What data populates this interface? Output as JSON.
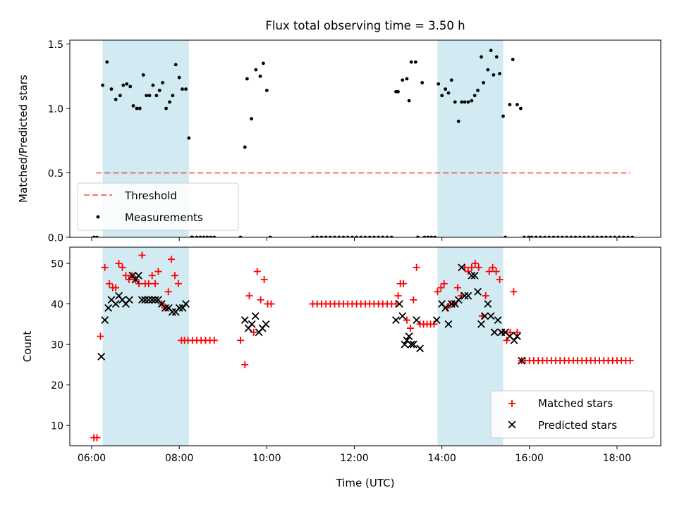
{
  "title": "Flux total observing time = 3.50 h",
  "colors": {
    "shade": "#add8e6",
    "threshold": "#ff0000",
    "measurement": "#000000",
    "matched": "#ff0000",
    "predicted": "#000000"
  },
  "chart_data": [
    {
      "type": "scatter",
      "ylabel": "Matched/Predicted stars",
      "ylim": [
        0,
        1.53
      ],
      "xlim": [
        5.5,
        19.0
      ],
      "yticks": [
        0.0,
        0.5,
        1.0,
        1.5
      ],
      "ytick_labels": [
        "0.0",
        "0.5",
        "1.0",
        "1.5"
      ],
      "shaded_ranges": [
        [
          6.25,
          8.22
        ],
        [
          13.9,
          15.4
        ]
      ],
      "threshold": {
        "name": "Threshold",
        "value": 0.5,
        "x_start": 6.1,
        "x_end": 18.3,
        "style": "dashed"
      },
      "legend": {
        "position": "lower-left",
        "entries": [
          "Threshold",
          "Measurements"
        ]
      },
      "series": [
        {
          "name": "Measurements",
          "marker": "dot",
          "x": [
            6.05,
            6.12,
            6.25,
            6.35,
            6.45,
            6.55,
            6.65,
            6.72,
            6.8,
            6.88,
            6.95,
            7.03,
            7.1,
            7.18,
            7.25,
            7.32,
            7.4,
            7.48,
            7.55,
            7.62,
            7.7,
            7.78,
            7.85,
            7.92,
            8.0,
            8.07,
            8.15,
            8.22,
            8.28,
            8.3,
            8.4,
            8.48,
            8.56,
            8.64,
            8.72,
            8.8,
            9.4,
            9.5,
            9.55,
            9.65,
            9.75,
            9.85,
            9.92,
            10.0,
            10.08,
            11.05,
            11.15,
            11.25,
            11.35,
            11.45,
            11.55,
            11.65,
            11.75,
            11.85,
            11.95,
            12.05,
            12.15,
            12.25,
            12.35,
            12.45,
            12.55,
            12.65,
            12.75,
            12.85,
            12.95,
            13.0,
            13.1,
            13.2,
            13.25,
            13.3,
            13.4,
            13.45,
            13.55,
            13.6,
            13.68,
            13.76,
            13.84,
            13.92,
            14.0,
            14.08,
            14.15,
            14.22,
            14.3,
            14.38,
            14.45,
            14.52,
            14.6,
            14.68,
            14.75,
            14.82,
            14.9,
            14.95,
            15.05,
            15.12,
            15.18,
            15.25,
            15.32,
            15.4,
            15.45,
            15.55,
            15.62,
            15.72,
            15.8,
            15.88,
            15.98,
            16.05,
            16.15,
            16.25,
            16.35,
            16.45,
            16.55,
            16.65,
            16.75,
            16.85,
            16.95,
            17.05,
            17.15,
            17.25,
            17.35,
            17.45,
            17.55,
            17.65,
            17.75,
            17.85,
            17.95,
            18.05,
            18.15,
            18.25,
            18.35
          ],
          "y": [
            0.0,
            0.0,
            1.18,
            1.36,
            1.15,
            1.07,
            1.1,
            1.18,
            1.19,
            1.17,
            1.02,
            1.0,
            1.0,
            1.26,
            1.1,
            1.1,
            1.18,
            1.1,
            1.14,
            1.2,
            1.0,
            1.05,
            1.1,
            1.34,
            1.24,
            1.15,
            1.15,
            0.77,
            0.0,
            0.0,
            0.0,
            0.0,
            0.0,
            0.0,
            0.0,
            0.0,
            0.0,
            0.7,
            1.23,
            0.92,
            1.3,
            1.25,
            1.35,
            1.14,
            0.0,
            0.0,
            0.0,
            0.0,
            0.0,
            0.0,
            0.0,
            0.0,
            0.0,
            0.0,
            0.0,
            0.0,
            0.0,
            0.0,
            0.0,
            0.0,
            0.0,
            0.0,
            0.0,
            0.0,
            1.13,
            1.13,
            1.22,
            1.23,
            1.06,
            1.36,
            1.36,
            0.0,
            1.2,
            0.0,
            0.0,
            0.0,
            0.0,
            1.19,
            1.1,
            1.15,
            1.12,
            1.22,
            1.05,
            0.9,
            1.05,
            1.05,
            1.05,
            1.06,
            1.1,
            1.14,
            1.4,
            1.2,
            1.3,
            1.45,
            1.26,
            1.4,
            1.27,
            0.94,
            0.0,
            1.03,
            1.38,
            1.03,
            1.0,
            0.0,
            0.0,
            0.0,
            0.0,
            0.0,
            0.0,
            0.0,
            0.0,
            0.0,
            0.0,
            0.0,
            0.0,
            0.0,
            0.0,
            0.0,
            0.0,
            0.0,
            0.0,
            0.0,
            0.0,
            0.0,
            0.0,
            0.0,
            0.0,
            0.0,
            0.0
          ]
        }
      ]
    },
    {
      "type": "scatter",
      "ylabel": "Count",
      "xlabel": "Time (UTC)",
      "ylim": [
        5,
        54
      ],
      "xlim": [
        5.5,
        19.0
      ],
      "yticks": [
        10,
        20,
        30,
        40,
        50
      ],
      "ytick_labels": [
        "10",
        "20",
        "30",
        "40",
        "50"
      ],
      "xticks": [
        6,
        8,
        10,
        12,
        14,
        16,
        18
      ],
      "xtick_labels": [
        "06:00",
        "08:00",
        "10:00",
        "12:00",
        "14:00",
        "16:00",
        "18:00"
      ],
      "shaded_ranges": [
        [
          6.25,
          8.22
        ],
        [
          13.9,
          15.4
        ]
      ],
      "legend": {
        "position": "lower-right",
        "entries": [
          "Matched stars",
          "Predicted stars"
        ]
      },
      "series": [
        {
          "name": "Matched stars",
          "marker": "plus",
          "x": [
            6.05,
            6.12,
            6.2,
            6.3,
            6.4,
            6.48,
            6.55,
            6.62,
            6.7,
            6.78,
            6.85,
            6.92,
            7.0,
            7.08,
            7.15,
            7.22,
            7.3,
            7.38,
            7.45,
            7.52,
            7.6,
            7.68,
            7.75,
            7.82,
            7.9,
            7.98,
            8.05,
            8.12,
            8.2,
            8.3,
            8.4,
            8.5,
            8.6,
            8.7,
            8.8,
            9.4,
            9.5,
            9.6,
            9.7,
            9.78,
            9.86,
            9.94,
            10.02,
            10.1,
            11.05,
            11.15,
            11.25,
            11.35,
            11.45,
            11.55,
            11.65,
            11.75,
            11.85,
            11.95,
            12.05,
            12.15,
            12.25,
            12.35,
            12.45,
            12.55,
            12.65,
            12.75,
            12.85,
            12.95,
            13.0,
            13.05,
            13.12,
            13.2,
            13.28,
            13.35,
            13.42,
            13.5,
            13.58,
            13.66,
            13.74,
            13.82,
            13.9,
            13.98,
            14.05,
            14.12,
            14.2,
            14.28,
            14.36,
            14.44,
            14.52,
            14.6,
            14.68,
            14.76,
            14.84,
            14.92,
            15.0,
            15.08,
            15.16,
            15.24,
            15.32,
            15.4,
            15.48,
            15.56,
            15.64,
            15.72,
            15.82,
            15.9,
            16.0,
            16.1,
            16.2,
            16.3,
            16.4,
            16.5,
            16.6,
            16.7,
            16.8,
            16.9,
            17.0,
            17.1,
            17.2,
            17.3,
            17.4,
            17.5,
            17.6,
            17.7,
            17.8,
            17.9,
            18.0,
            18.1,
            18.2,
            18.3
          ],
          "y": [
            7,
            7,
            32,
            49,
            45,
            44,
            44,
            50,
            49,
            47,
            46,
            47,
            46,
            45,
            52,
            45,
            45,
            47,
            45,
            48,
            40,
            39,
            43,
            51,
            47,
            45,
            31,
            31,
            31,
            31,
            31,
            31,
            31,
            31,
            31,
            31,
            25,
            42,
            33,
            48,
            41,
            46,
            40,
            40,
            40,
            40,
            40,
            40,
            40,
            40,
            40,
            40,
            40,
            40,
            40,
            40,
            40,
            40,
            40,
            40,
            40,
            40,
            40,
            40,
            42,
            45,
            45,
            36,
            34,
            41,
            49,
            35,
            35,
            35,
            35,
            35,
            43,
            44,
            45,
            39,
            40,
            40,
            44,
            42,
            49,
            48,
            49,
            50,
            49,
            37,
            42,
            48,
            49,
            48,
            46,
            33,
            31,
            33,
            43,
            33,
            26,
            26,
            26,
            26,
            26,
            26,
            26,
            26,
            26,
            26,
            26,
            26,
            26,
            26,
            26,
            26,
            26,
            26,
            26,
            26,
            26,
            26,
            26,
            26,
            26,
            26
          ]
        },
        {
          "name": "Predicted stars",
          "marker": "x",
          "x": [
            6.22,
            6.3,
            6.38,
            6.45,
            6.55,
            6.62,
            6.7,
            6.78,
            6.86,
            6.93,
            7.0,
            7.07,
            7.15,
            7.22,
            7.3,
            7.38,
            7.45,
            7.52,
            7.6,
            7.68,
            7.76,
            7.84,
            7.92,
            8.0,
            8.08,
            8.15,
            9.5,
            9.58,
            9.66,
            9.74,
            9.82,
            9.9,
            9.98,
            12.95,
            13.03,
            13.1,
            13.15,
            13.2,
            13.25,
            13.3,
            13.35,
            13.42,
            13.5,
            13.88,
            14.0,
            14.08,
            14.15,
            14.22,
            14.3,
            14.38,
            14.45,
            14.52,
            14.6,
            14.68,
            14.75,
            14.82,
            14.9,
            14.98,
            15.05,
            15.12,
            15.2,
            15.28,
            15.36,
            15.45,
            15.55,
            15.65,
            15.72,
            15.82
          ],
          "y": [
            27,
            36,
            39,
            41,
            40,
            42,
            41,
            40,
            41,
            47,
            46,
            47,
            41,
            41,
            41,
            41,
            41,
            41,
            40,
            39,
            39,
            38,
            38,
            39,
            39,
            40,
            36,
            34,
            35,
            37,
            33,
            34,
            35,
            36,
            40,
            37,
            30,
            31,
            32,
            30,
            30,
            36,
            29,
            36,
            40,
            39,
            35,
            40,
            40,
            41,
            49,
            42,
            42,
            47,
            47,
            43,
            35,
            37,
            40,
            37,
            33,
            36,
            33,
            33,
            32,
            31,
            32,
            26
          ]
        }
      ]
    }
  ]
}
